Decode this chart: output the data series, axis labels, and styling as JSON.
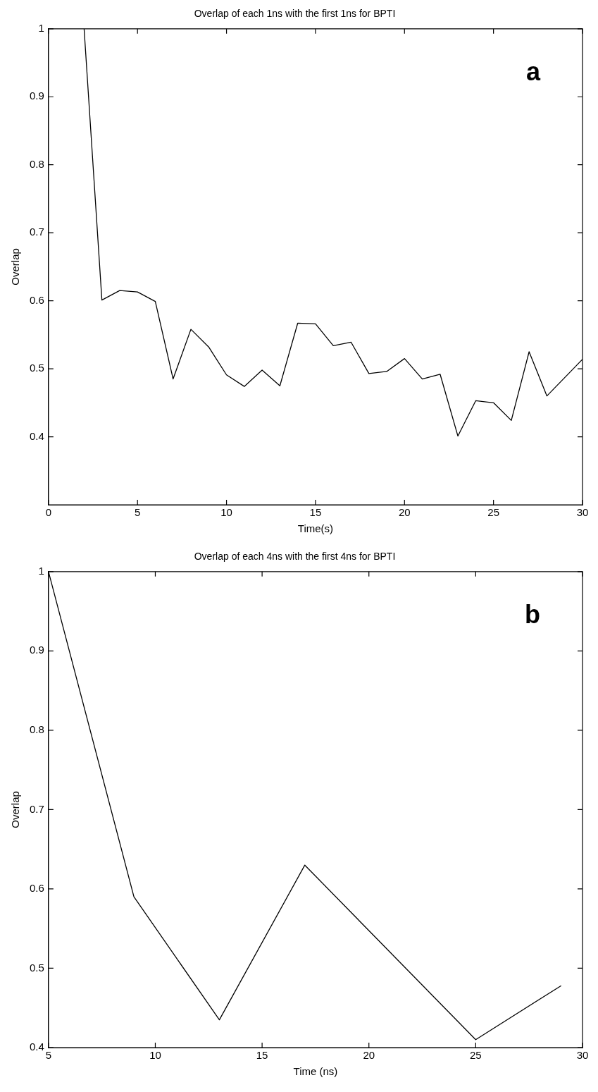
{
  "chart_data": [
    {
      "type": "line",
      "title": "Overlap of each 1ns with the first 1ns for BPTI",
      "xlabel": "Time(s)",
      "ylabel": "Overlap",
      "x": [
        2,
        3,
        4,
        5,
        6,
        7,
        8,
        9,
        10,
        11,
        12,
        13,
        14,
        15,
        16,
        17,
        18,
        19,
        20,
        21,
        22,
        23,
        24,
        25,
        26,
        27,
        28,
        29,
        30
      ],
      "series": [
        {
          "color": "#000000",
          "values": [
            1,
            0.601,
            0.615,
            0.613,
            0.599,
            0.485,
            0.558,
            0.532,
            0.491,
            0.474,
            0.498,
            0.475,
            0.567,
            0.566,
            0.534,
            0.539,
            0.493,
            0.496,
            0.515,
            0.485,
            0.492,
            0.401,
            0.453,
            0.45,
            0.424,
            0.525,
            0.46,
            0.487,
            0.514
          ]
        }
      ],
      "xlim": [
        0,
        30
      ],
      "xticks": [
        0,
        5,
        10,
        15,
        20,
        25,
        30
      ],
      "ylim": [
        0.3,
        1
      ],
      "yticks": [
        0.4,
        0.5,
        0.6,
        0.7,
        0.8,
        0.9,
        1
      ],
      "annotations": [
        "a"
      ],
      "grid": false,
      "legend": false
    },
    {
      "type": "line",
      "title": "Overlap of each 4ns with the first 4ns for BPTI",
      "xlabel": "Time (ns)",
      "ylabel": "Overlap",
      "x": [
        5,
        9,
        13,
        17,
        21,
        25,
        29
      ],
      "series": [
        {
          "color": "#000000",
          "values": [
            1,
            0.59,
            0.435,
            0.63,
            0.52,
            0.41,
            0.478
          ]
        }
      ],
      "xlim": [
        5,
        30
      ],
      "xticks": [
        5,
        10,
        15,
        20,
        25,
        30
      ],
      "ylim": [
        0.4,
        1
      ],
      "yticks": [
        0.4,
        0.5,
        0.6,
        0.7,
        0.8,
        0.9,
        1
      ],
      "annotations": [
        "b"
      ],
      "grid": false,
      "legend": false
    }
  ]
}
